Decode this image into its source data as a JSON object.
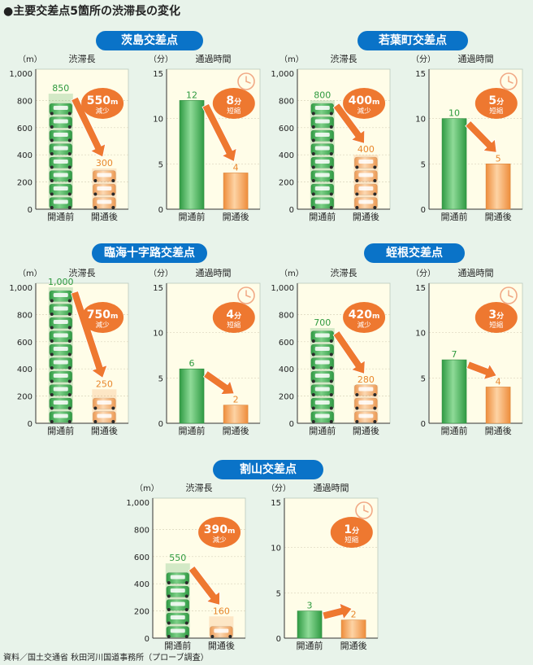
{
  "title": "●主要交差点5箇所の渋滞長の変化",
  "source": "資料／国土交通省 秋田河川国道事務所（プローブ調査）",
  "colors": {
    "page_background": "#e8f3ea",
    "panel_background": "#fffde8",
    "green_bar": "#4fb05e",
    "orange_bar": "#f6a55a",
    "arrow": "#ee7830",
    "pill": "#0a73c8",
    "green_label": "#2e9a3e",
    "orange_label": "#e8872c"
  },
  "icons": {
    "car": "car-stack-icon",
    "clock": "clock-icon",
    "arrow": "arrow-icon"
  },
  "chart_data": [
    {
      "intersection": "茨島交差点",
      "length_chart": {
        "type": "bar",
        "title": "渋滞長",
        "unit": "（m）",
        "categories": [
          "開通前",
          "開通後"
        ],
        "values": [
          850,
          300
        ],
        "ylim": [
          0,
          1000
        ],
        "yticks": [
          "0",
          "200",
          "400",
          "600",
          "800",
          "1,000"
        ],
        "value_labels": [
          "850",
          "300"
        ],
        "change_value": "550",
        "change_unit": "m",
        "change_label": "減少"
      },
      "time_chart": {
        "type": "bar",
        "title": "通過時間",
        "unit": "（分）",
        "categories": [
          "開通前",
          "開通後"
        ],
        "values": [
          12,
          4
        ],
        "ylim": [
          0,
          15
        ],
        "yticks": [
          "0",
          "5",
          "10",
          "15"
        ],
        "value_labels": [
          "12",
          "4"
        ],
        "change_value": "8",
        "change_unit": "分",
        "change_label": "短縮"
      }
    },
    {
      "intersection": "若葉町交差点",
      "length_chart": {
        "type": "bar",
        "title": "渋滞長",
        "unit": "（m）",
        "categories": [
          "開通前",
          "開通後"
        ],
        "values": [
          800,
          400
        ],
        "ylim": [
          0,
          1000
        ],
        "yticks": [
          "0",
          "200",
          "400",
          "600",
          "800",
          "1,000"
        ],
        "value_labels": [
          "800",
          "400"
        ],
        "change_value": "400",
        "change_unit": "m",
        "change_label": "減少"
      },
      "time_chart": {
        "type": "bar",
        "title": "通過時間",
        "unit": "（分）",
        "categories": [
          "開通前",
          "開通後"
        ],
        "values": [
          10,
          5
        ],
        "ylim": [
          0,
          15
        ],
        "yticks": [
          "0",
          "5",
          "10",
          "15"
        ],
        "value_labels": [
          "10",
          "5"
        ],
        "change_value": "5",
        "change_unit": "分",
        "change_label": "短縮"
      }
    },
    {
      "intersection": "臨海十字路交差点",
      "length_chart": {
        "type": "bar",
        "title": "渋滞長",
        "unit": "（m）",
        "categories": [
          "開通前",
          "開通後"
        ],
        "values": [
          1000,
          250
        ],
        "ylim": [
          0,
          1000
        ],
        "yticks": [
          "0",
          "200",
          "400",
          "600",
          "800",
          "1,000"
        ],
        "value_labels": [
          "1,000",
          "250"
        ],
        "change_value": "750",
        "change_unit": "m",
        "change_label": "減少"
      },
      "time_chart": {
        "type": "bar",
        "title": "通過時間",
        "unit": "（分）",
        "categories": [
          "開通前",
          "開通後"
        ],
        "values": [
          6,
          2
        ],
        "ylim": [
          0,
          15
        ],
        "yticks": [
          "0",
          "5",
          "10",
          "15"
        ],
        "value_labels": [
          "6",
          "2"
        ],
        "change_value": "4",
        "change_unit": "分",
        "change_label": "短縮"
      }
    },
    {
      "intersection": "蛭根交差点",
      "length_chart": {
        "type": "bar",
        "title": "渋滞長",
        "unit": "（m）",
        "categories": [
          "開通前",
          "開通後"
        ],
        "values": [
          700,
          280
        ],
        "ylim": [
          0,
          1000
        ],
        "yticks": [
          "0",
          "200",
          "400",
          "600",
          "800",
          "1,000"
        ],
        "value_labels": [
          "700",
          "280"
        ],
        "change_value": "420",
        "change_unit": "m",
        "change_label": "減少"
      },
      "time_chart": {
        "type": "bar",
        "title": "通過時間",
        "unit": "（分）",
        "categories": [
          "開通前",
          "開通後"
        ],
        "values": [
          7,
          4
        ],
        "ylim": [
          0,
          15
        ],
        "yticks": [
          "0",
          "5",
          "10",
          "15"
        ],
        "value_labels": [
          "7",
          "4"
        ],
        "change_value": "3",
        "change_unit": "分",
        "change_label": "短縮"
      }
    },
    {
      "intersection": "割山交差点",
      "length_chart": {
        "type": "bar",
        "title": "渋滞長",
        "unit": "（m）",
        "categories": [
          "開通前",
          "開通後"
        ],
        "values": [
          550,
          160
        ],
        "ylim": [
          0,
          1000
        ],
        "yticks": [
          "0",
          "200",
          "400",
          "600",
          "800",
          "1,000"
        ],
        "value_labels": [
          "550",
          "160"
        ],
        "change_value": "390",
        "change_unit": "m",
        "change_label": "減少"
      },
      "time_chart": {
        "type": "bar",
        "title": "通過時間",
        "unit": "（分）",
        "categories": [
          "開通前",
          "開通後"
        ],
        "values": [
          3,
          2
        ],
        "ylim": [
          0,
          15
        ],
        "yticks": [
          "0",
          "5",
          "10",
          "15"
        ],
        "value_labels": [
          "3",
          "2"
        ],
        "change_value": "1",
        "change_unit": "分",
        "change_label": "短縮"
      }
    }
  ]
}
